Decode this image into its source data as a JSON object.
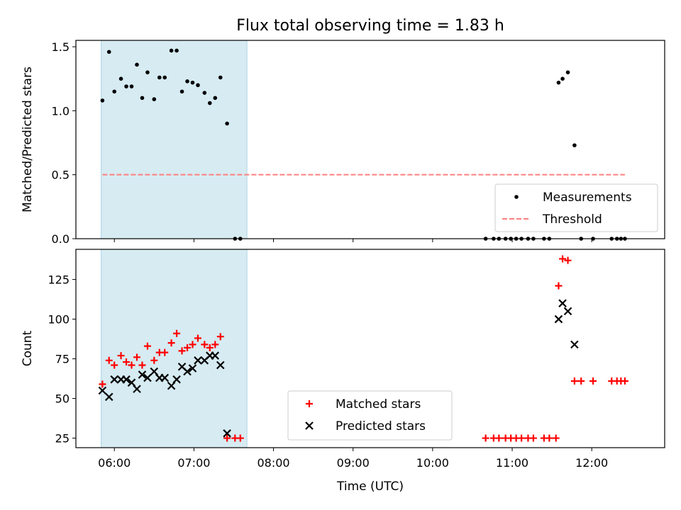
{
  "title": "Flux total observing time = 1.83 h",
  "chart_data": [
    {
      "type": "scatter",
      "ylabel": "Matched/Predicted stars",
      "xlim": [
        "05:31",
        "12:55"
      ],
      "ylim": [
        0,
        1.55
      ],
      "x_ticks": [
        "06:00",
        "07:00",
        "08:00",
        "09:00",
        "10:00",
        "11:00",
        "12:00"
      ],
      "y_ticks": [
        {
          "value": 0,
          "label": "0.0"
        },
        {
          "value": 0.5,
          "label": "0.5"
        },
        {
          "value": 1.0,
          "label": "1.0"
        },
        {
          "value": 1.5,
          "label": "1.5"
        }
      ],
      "shaded_interval": [
        "05:50",
        "07:40"
      ],
      "legend": {
        "placement": "lower right",
        "entries": [
          "Measurements",
          "Threshold"
        ]
      },
      "series": [
        {
          "name": "Measurements",
          "marker": "dot",
          "color": "#000000",
          "points": [
            [
              "05:51",
              1.08
            ],
            [
              "05:56",
              1.46
            ],
            [
              "06:00",
              1.15
            ],
            [
              "06:05",
              1.25
            ],
            [
              "06:09",
              1.19
            ],
            [
              "06:13",
              1.19
            ],
            [
              "06:17",
              1.36
            ],
            [
              "06:21",
              1.1
            ],
            [
              "06:25",
              1.3
            ],
            [
              "06:30",
              1.09
            ],
            [
              "06:34",
              1.26
            ],
            [
              "06:38",
              1.26
            ],
            [
              "06:43",
              1.47
            ],
            [
              "06:47",
              1.47
            ],
            [
              "06:51",
              1.15
            ],
            [
              "06:55",
              1.23
            ],
            [
              "06:59",
              1.22
            ],
            [
              "07:03",
              1.2
            ],
            [
              "07:08",
              1.14
            ],
            [
              "07:12",
              1.06
            ],
            [
              "07:16",
              1.1
            ],
            [
              "07:20",
              1.26
            ],
            [
              "07:25",
              0.9
            ],
            [
              "07:31",
              0.0
            ],
            [
              "07:35",
              0.0
            ],
            [
              "10:40",
              0.0
            ],
            [
              "10:46",
              0.0
            ],
            [
              "10:50",
              0.0
            ],
            [
              "10:55",
              0.0
            ],
            [
              "10:59",
              0.0
            ],
            [
              "11:03",
              0.0
            ],
            [
              "11:07",
              0.0
            ],
            [
              "11:12",
              0.0
            ],
            [
              "11:16",
              0.0
            ],
            [
              "11:24",
              0.0
            ],
            [
              "11:28",
              0.0
            ],
            [
              "11:35",
              1.22
            ],
            [
              "11:38",
              1.25
            ],
            [
              "11:42",
              1.3
            ],
            [
              "11:47",
              0.73
            ],
            [
              "11:52",
              0.0
            ],
            [
              "12:01",
              0.0
            ],
            [
              "12:15",
              0.0
            ],
            [
              "12:19",
              0.0
            ],
            [
              "12:22",
              0.0
            ],
            [
              "12:25",
              0.0
            ]
          ]
        },
        {
          "name": "Threshold",
          "style": "dashed",
          "color": "#ff7f7f",
          "points": [
            [
              "05:51",
              0.5
            ],
            [
              "12:25",
              0.5
            ]
          ]
        }
      ]
    },
    {
      "type": "scatter",
      "xlabel": "Time (UTC)",
      "ylabel": "Count",
      "xlim": [
        "05:31",
        "12:55"
      ],
      "ylim": [
        19,
        144
      ],
      "x_ticks": [
        "06:00",
        "07:00",
        "08:00",
        "09:00",
        "10:00",
        "11:00",
        "12:00"
      ],
      "y_ticks": [
        {
          "value": 25,
          "label": "25"
        },
        {
          "value": 50,
          "label": "50"
        },
        {
          "value": 75,
          "label": "75"
        },
        {
          "value": 100,
          "label": "100"
        },
        {
          "value": 125,
          "label": "125"
        }
      ],
      "shaded_interval": [
        "05:50",
        "07:40"
      ],
      "legend": {
        "placement": "lower center",
        "entries": [
          "Matched stars",
          "Predicted stars"
        ]
      },
      "series": [
        {
          "name": "Matched stars",
          "marker": "plus",
          "color": "#ff0000",
          "points": [
            [
              "05:51",
              59
            ],
            [
              "05:56",
              74
            ],
            [
              "06:00",
              71
            ],
            [
              "06:05",
              77
            ],
            [
              "06:09",
              73
            ],
            [
              "06:13",
              71
            ],
            [
              "06:17",
              76
            ],
            [
              "06:21",
              71
            ],
            [
              "06:25",
              83
            ],
            [
              "06:30",
              74
            ],
            [
              "06:34",
              79
            ],
            [
              "06:38",
              79
            ],
            [
              "06:43",
              85
            ],
            [
              "06:47",
              91
            ],
            [
              "06:51",
              80
            ],
            [
              "06:55",
              82
            ],
            [
              "06:59",
              84
            ],
            [
              "07:03",
              88
            ],
            [
              "07:08",
              84
            ],
            [
              "07:12",
              82
            ],
            [
              "07:16",
              84
            ],
            [
              "07:20",
              89
            ],
            [
              "07:25",
              25
            ],
            [
              "07:31",
              25
            ],
            [
              "07:35",
              25
            ],
            [
              "10:40",
              25
            ],
            [
              "10:46",
              25
            ],
            [
              "10:50",
              25
            ],
            [
              "10:55",
              25
            ],
            [
              "10:59",
              25
            ],
            [
              "11:03",
              25
            ],
            [
              "11:07",
              25
            ],
            [
              "11:12",
              25
            ],
            [
              "11:16",
              25
            ],
            [
              "11:24",
              25
            ],
            [
              "11:28",
              25
            ],
            [
              "11:33",
              25
            ],
            [
              "11:35",
              121
            ],
            [
              "11:38",
              138
            ],
            [
              "11:42",
              137
            ],
            [
              "11:47",
              61
            ],
            [
              "11:52",
              61
            ],
            [
              "12:01",
              61
            ],
            [
              "12:15",
              61
            ],
            [
              "12:19",
              61
            ],
            [
              "12:22",
              61
            ],
            [
              "12:25",
              61
            ]
          ]
        },
        {
          "name": "Predicted stars",
          "marker": "x",
          "color": "#000000",
          "points": [
            [
              "05:51",
              55
            ],
            [
              "05:56",
              51
            ],
            [
              "06:00",
              62
            ],
            [
              "06:05",
              62
            ],
            [
              "06:09",
              62
            ],
            [
              "06:13",
              60
            ],
            [
              "06:17",
              56
            ],
            [
              "06:21",
              65
            ],
            [
              "06:25",
              63
            ],
            [
              "06:30",
              67
            ],
            [
              "06:34",
              63
            ],
            [
              "06:38",
              63
            ],
            [
              "06:43",
              58
            ],
            [
              "06:47",
              62
            ],
            [
              "06:51",
              70
            ],
            [
              "06:55",
              67
            ],
            [
              "06:59",
              69
            ],
            [
              "07:03",
              74
            ],
            [
              "07:08",
              74
            ],
            [
              "07:12",
              77
            ],
            [
              "07:16",
              77
            ],
            [
              "07:20",
              71
            ],
            [
              "07:25",
              28
            ],
            [
              "11:35",
              100
            ],
            [
              "11:38",
              110
            ],
            [
              "11:42",
              105
            ],
            [
              "11:47",
              84
            ]
          ]
        }
      ]
    }
  ]
}
